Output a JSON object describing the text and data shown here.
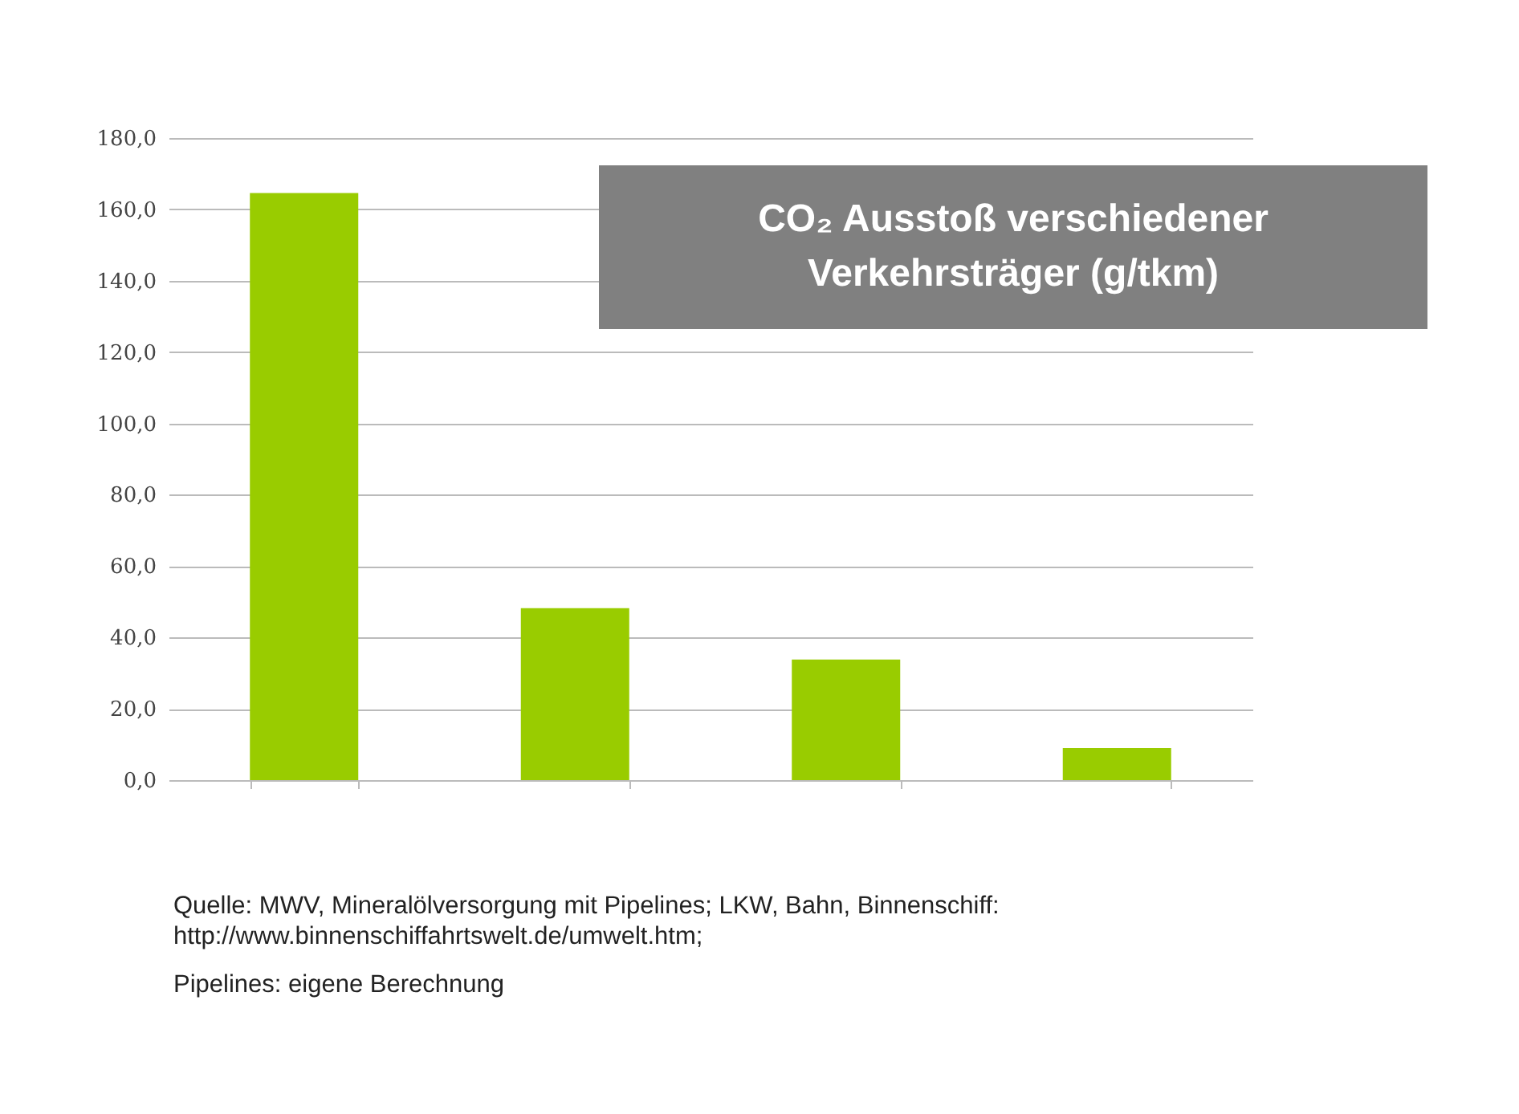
{
  "chart_data": {
    "type": "bar",
    "title": "CO₂ Ausstoß verschiedener Verkehrsträger (g/tkm)",
    "categories": [
      null,
      null,
      null,
      null
    ],
    "values": [
      164.6,
      48.2,
      33.8,
      9.0
    ],
    "color": "#99cc00",
    "ylim": [
      0,
      180
    ],
    "yticks": [
      {
        "value": 0,
        "label": "0,0"
      },
      {
        "value": 20,
        "label": "20,0"
      },
      {
        "value": 40,
        "label": "40,0"
      },
      {
        "value": 60,
        "label": "60,0"
      },
      {
        "value": 80,
        "label": "80,0"
      },
      {
        "value": 100,
        "label": "100,0"
      },
      {
        "value": 120,
        "label": "120,0"
      },
      {
        "value": 140,
        "label": "140,0"
      },
      {
        "value": 160,
        "label": "160,0"
      },
      {
        "value": 180,
        "label": "180,0"
      }
    ],
    "grid": "y",
    "annotations": [
      "Quelle: MWV, Mineralölversorgung mit Pipelines; LKW, Bahn, Binnenschiff: http://www.binnenschiffahrtswelt.de/umwelt.htm;",
      "Pipelines: eigene Berechnung"
    ]
  }
}
